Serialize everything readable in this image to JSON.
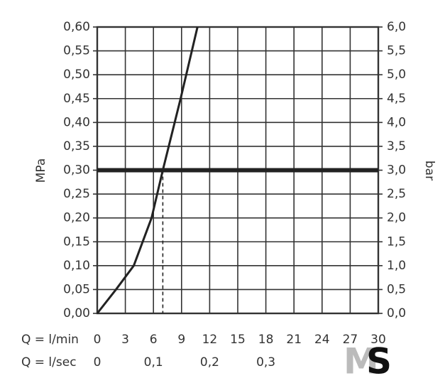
{
  "chart_data": {
    "type": "line",
    "y_label": "MPa",
    "y2_label": "bar",
    "x_label": "Q = l/min",
    "x2_label": "Q = l/sec",
    "x": [
      0,
      2,
      3.9,
      5.8,
      7,
      8.9,
      10.7
    ],
    "values": [
      0,
      0.05,
      0.1,
      0.2,
      0.3,
      0.45,
      0.6
    ],
    "color": "#222222",
    "xlim": [
      0,
      30
    ],
    "xticks": [
      0,
      3,
      6,
      9,
      12,
      15,
      18,
      21,
      24,
      27,
      30
    ],
    "x2lim": [
      0,
      0.5
    ],
    "x2ticks": [
      0,
      {
        "value": 0.1,
        "label": "0,1"
      },
      {
        "value": 0.2,
        "label": "0,2"
      },
      {
        "value": 0.3,
        "label": "0,3"
      }
    ],
    "ylim": [
      0,
      0.6
    ],
    "yticks": [
      {
        "value": 0,
        "label": "0,00"
      },
      {
        "value": 0.05,
        "label": "0,05"
      },
      {
        "value": 0.1,
        "label": "0,10"
      },
      {
        "value": 0.15,
        "label": "0,15"
      },
      {
        "value": 0.2,
        "label": "0,20"
      },
      {
        "value": 0.25,
        "label": "0,25"
      },
      {
        "value": 0.3,
        "label": "0,30"
      },
      {
        "value": 0.35,
        "label": "0,35"
      },
      {
        "value": 0.4,
        "label": "0,40"
      },
      {
        "value": 0.45,
        "label": "0,45"
      },
      {
        "value": 0.5,
        "label": "0,50"
      },
      {
        "value": 0.55,
        "label": "0,55"
      },
      {
        "value": 0.6,
        "label": "0,60"
      }
    ],
    "y2lim": [
      0,
      6
    ],
    "y2ticks": [
      {
        "value": 0,
        "label": "0,0"
      },
      {
        "value": 0.5,
        "label": "0,5"
      },
      {
        "value": 1,
        "label": "1,0"
      },
      {
        "value": 1.5,
        "label": "1,5"
      },
      {
        "value": 2,
        "label": "2,0"
      },
      {
        "value": 2.5,
        "label": "2,5"
      },
      {
        "value": 3,
        "label": "3,0"
      },
      {
        "value": 3.5,
        "label": "3,5"
      },
      {
        "value": 4,
        "label": "4,0"
      },
      {
        "value": 4.5,
        "label": "4,5"
      },
      {
        "value": 5,
        "label": "5,0"
      },
      {
        "value": 5.5,
        "label": "5,5"
      },
      {
        "value": 6,
        "label": "6,0"
      }
    ],
    "reference_y": 0.3,
    "reference_x": 7,
    "grid": true,
    "logo": {
      "m": "M",
      "s": "S"
    }
  }
}
